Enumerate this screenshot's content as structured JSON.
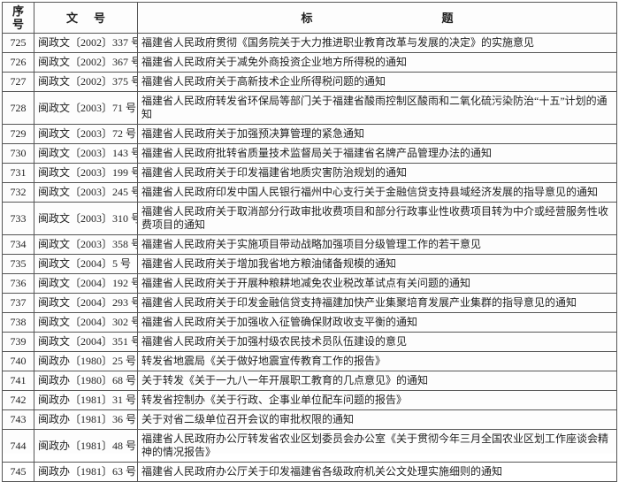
{
  "colors": {
    "paper": "#fdfdfd",
    "ink": "#1f1f1f",
    "grid_line": "#565656"
  },
  "header": {
    "col_index_line1": "序",
    "col_index_line2": "号",
    "col_doc_part1": "文",
    "col_doc_part2": "号",
    "col_title_part1": "标",
    "col_title_part2": "题"
  },
  "rows": [
    {
      "no": "725",
      "doc": "闽政文〔2002〕337 号",
      "title": "福建省人民政府贯彻《国务院关于大力推进职业教育改革与发展的决定》的实施意见"
    },
    {
      "no": "726",
      "doc": "闽政文〔2002〕367 号",
      "title": "福建省人民政府关于减免外商投资企业地方所得税的通知"
    },
    {
      "no": "727",
      "doc": "闽政文〔2002〕375 号",
      "title": "福建省人民政府关于高新技术企业所得税问题的通知"
    },
    {
      "no": "728",
      "doc": "闽政文〔2003〕71 号",
      "title": "福建省人民政府转发省环保局等部门关于福建省酸雨控制区酸雨和二氧化硫污染防治“十五”计划的通知"
    },
    {
      "no": "729",
      "doc": "闽政文〔2003〕72 号",
      "title": "福建省人民政府关于加强预决算管理的紧急通知"
    },
    {
      "no": "730",
      "doc": "闽政文〔2003〕143 号",
      "title": "福建省人民政府批转省质量技术监督局关于福建省名牌产品管理办法的通知"
    },
    {
      "no": "731",
      "doc": "闽政文〔2003〕199 号",
      "title": "福建省人民政府关于印发福建省地质灾害防治规划的通知"
    },
    {
      "no": "732",
      "doc": "闽政文〔2003〕245 号",
      "title": "福建省人民政府印发中国人民银行福州中心支行关于金融信贷支持县域经济发展的指导意见的通知"
    },
    {
      "no": "733",
      "doc": "闽政文〔2003〕310 号",
      "title": "福建省人民政府关于取消部分行政审批收费项目和部分行政事业性收费项目转为中介或经营服务性收费项目的通知"
    },
    {
      "no": "734",
      "doc": "闽政文〔2003〕358 号",
      "title": "福建省人民政府关于实施项目带动战略加强项目分级管理工作的若干意见"
    },
    {
      "no": "735",
      "doc": "闽政文〔2004〕5 号",
      "title": "福建省人民政府关于增加我省地方粮油储备规模的通知"
    },
    {
      "no": "736",
      "doc": "闽政文〔2004〕192 号",
      "title": "福建省人民政府关于开展种粮耕地减免农业税改革试点有关问题的通知"
    },
    {
      "no": "737",
      "doc": "闽政文〔2004〕293 号",
      "title": "福建省人民政府关于印发金融信贷支持福建加快产业集聚培育发展产业集群的指导意见的通知"
    },
    {
      "no": "738",
      "doc": "闽政文〔2004〕302 号",
      "title": "福建省人民政府关于加强收入征管确保财政收支平衡的通知"
    },
    {
      "no": "739",
      "doc": "闽政文〔2004〕351 号",
      "title": "福建省人民政府关于加强村级农民技术员队伍建设的意见"
    },
    {
      "no": "740",
      "doc": "闽政办〔1980〕25 号",
      "title": "转发省地震局《关于做好地震宣传教育工作的报告》"
    },
    {
      "no": "741",
      "doc": "闽政办〔1980〕68 号",
      "title": "关于转发《关于一九八一年开展职工教育的几点意见》的通知"
    },
    {
      "no": "742",
      "doc": "闽政办〔1981〕31 号",
      "title": "转发省控制办《关于行政、企事业单位配车问题的报告》"
    },
    {
      "no": "743",
      "doc": "闽政办〔1981〕36 号",
      "title": "关于对省二级单位召开会议的审批权限的通知"
    },
    {
      "no": "744",
      "doc": "闽政办〔1981〕48 号",
      "title": "福建省人民政府办公厅转发省农业区划委员会办公室《关于贯彻今年三月全国农业区划工作座谈会精神的情况报告》"
    },
    {
      "no": "745",
      "doc": "闽政办〔1981〕63 号",
      "title": "福建省人民政府办公厅关于印发福建省各级政府机关公文处理实施细则的通知"
    }
  ]
}
